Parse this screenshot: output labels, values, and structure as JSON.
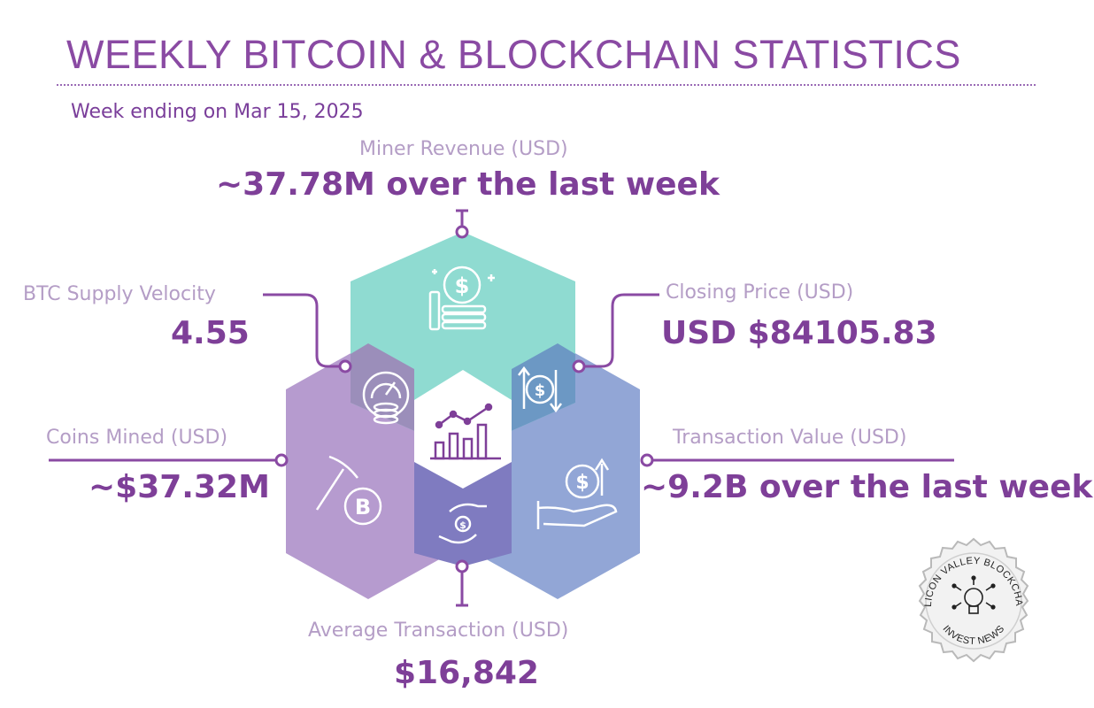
{
  "header": {
    "title": "WEEKLY BITCOIN & BLOCKCHAIN STATISTICS",
    "subtitle": "Week ending on Mar 15, 2025"
  },
  "stats": {
    "miner_revenue": {
      "label": "Miner Revenue (USD)",
      "value": "~37.78M over the last week",
      "icon": "coins-dollar-icon"
    },
    "supply_velocity": {
      "label": "BTC Supply Velocity",
      "value": "4.55",
      "icon": "gauge-coins-icon"
    },
    "closing_price": {
      "label": "Closing Price (USD)",
      "value": "USD $84105.83",
      "icon": "dollar-exchange-icon"
    },
    "coins_mined": {
      "label": "Coins Mined (USD)",
      "value": "~$37.32M",
      "icon": "pickaxe-bitcoin-icon"
    },
    "transaction_value": {
      "label": "Transaction Value (USD)",
      "value": "~9.2B over the last week",
      "icon": "hand-dollar-growth-icon"
    },
    "average_transaction": {
      "label": "Average Transaction (USD)",
      "value": "$16,842",
      "icon": "hands-exchange-coin-icon"
    },
    "center": {
      "icon": "bar-line-chart-icon"
    }
  },
  "seal": {
    "top_text": "SILICON VALLEY BLOCKCHAIN",
    "bottom_text": "INVEST NEWS",
    "icon": "lightbulb-circuit-icon"
  },
  "colors": {
    "accent": "#7e3f98",
    "label": "#b49dc6",
    "teal": "#8fdbd1",
    "purple": "#b69bcf",
    "blue": "#92a6d6",
    "overlap_teal_purple": "#9b8eba",
    "overlap_teal_blue": "#6c98c4",
    "overlap_purple_blue": "#7f7bc0"
  }
}
